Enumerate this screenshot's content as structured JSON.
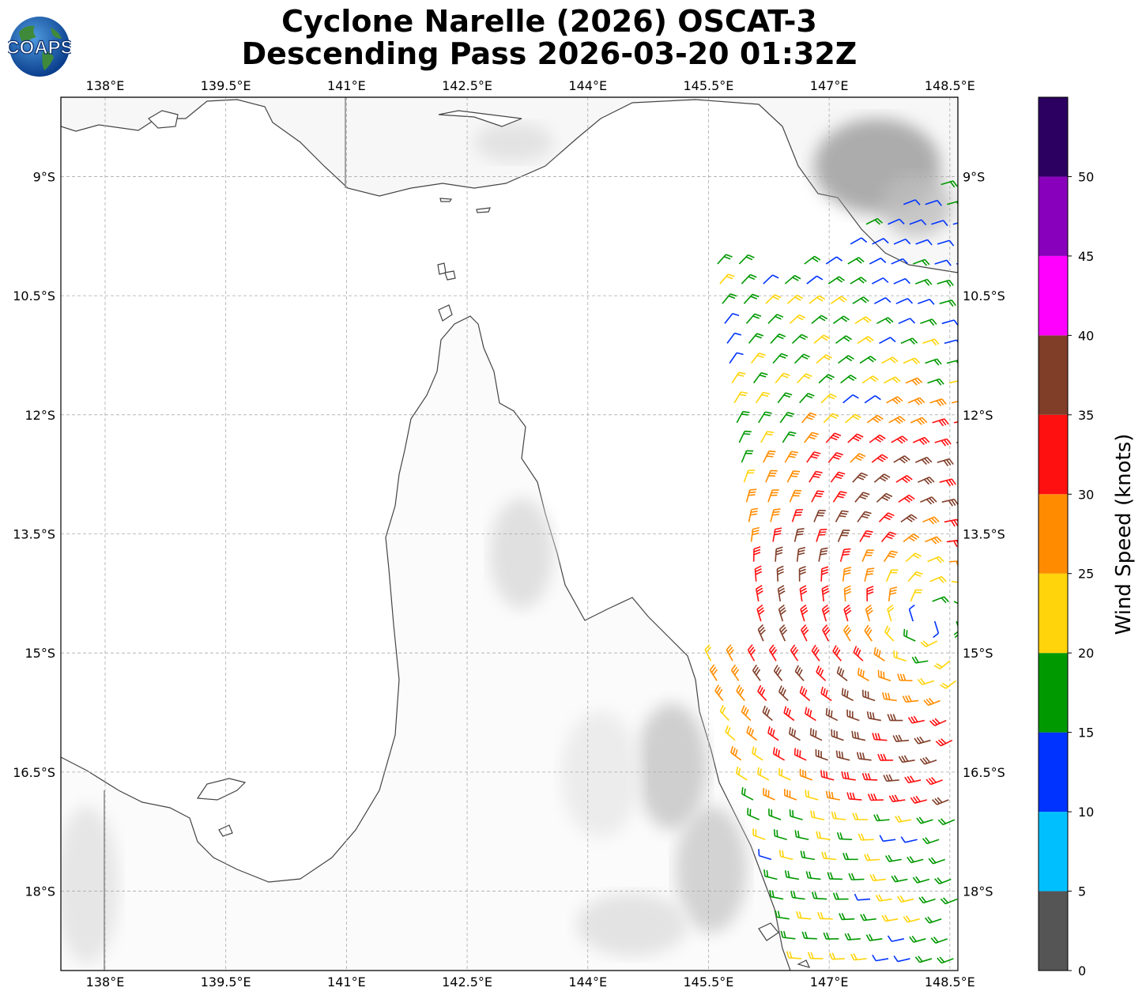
{
  "title": {
    "line1": "Cyclone Narelle (2026) OSCAT-3",
    "line2": "Descending Pass 2026-03-20 01:32Z"
  },
  "logo": {
    "text": "COAPS",
    "icon": "globe-logo-icon"
  },
  "map": {
    "lon_ticks": [
      "138°E",
      "139.5°E",
      "141°E",
      "142.5°E",
      "144°E",
      "145.5°E",
      "147°E",
      "148.5°E"
    ],
    "lat_ticks": [
      "9°S",
      "10.5°S",
      "12°S",
      "13.5°S",
      "15°S",
      "16.5°S",
      "18°S"
    ],
    "lon_values": [
      138,
      139.5,
      141,
      142.5,
      144,
      145.5,
      147,
      148.5
    ],
    "lat_values": [
      -9,
      -10.5,
      -12,
      -13.5,
      -15,
      -16.5,
      -18
    ],
    "extent": {
      "lon_min": 137.45,
      "lon_max": 148.6,
      "lat_min": -19.0,
      "lat_max": -8.0
    },
    "grid": true
  },
  "colorbar": {
    "label": "Wind Speed (knots)",
    "ticks": [
      "0",
      "5",
      "10",
      "15",
      "20",
      "25",
      "30",
      "35",
      "40",
      "45",
      "50"
    ],
    "bins": [
      {
        "from": 0,
        "to": 5,
        "color": "#555555"
      },
      {
        "from": 5,
        "to": 10,
        "color": "#00bfff"
      },
      {
        "from": 10,
        "to": 15,
        "color": "#0033ff"
      },
      {
        "from": 15,
        "to": 20,
        "color": "#009900"
      },
      {
        "from": 20,
        "to": 25,
        "color": "#ffd40a"
      },
      {
        "from": 25,
        "to": 30,
        "color": "#ff8c00"
      },
      {
        "from": 30,
        "to": 35,
        "color": "#ff1010"
      },
      {
        "from": 35,
        "to": 40,
        "color": "#803d28"
      },
      {
        "from": 40,
        "to": 45,
        "color": "#ff00ff"
      },
      {
        "from": 45,
        "to": 50,
        "color": "#8800bb"
      },
      {
        "from": 50,
        "to": 55,
        "color": "#2b0060"
      }
    ]
  }
}
